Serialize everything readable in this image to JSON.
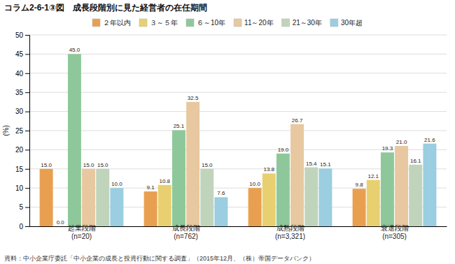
{
  "chart_data": {
    "type": "bar",
    "title": "コラム2-6-1③図　成長段階別に見た経営者の在任期間",
    "ylabel": "(%)",
    "categories": [
      "起業段階\n(n=20)",
      "成長段階\n(n=762)",
      "成熟段階\n(n=3,321)",
      "衰退段階\n(n=305)"
    ],
    "series": [
      {
        "name": "２年以内",
        "color": "#E8A050",
        "values": [
          15.0,
          9.1,
          10.0,
          9.8
        ],
        "value_labels": [
          "15.0",
          "9.1",
          "10.0",
          "9.8"
        ]
      },
      {
        "name": "３～５年",
        "color": "#E8D070",
        "values": [
          0.0,
          10.8,
          13.8,
          12.1
        ],
        "value_labels": [
          "0.0",
          "10.8",
          "13.8",
          "12.1"
        ]
      },
      {
        "name": "６～10年",
        "color": "#8EC89A",
        "values": [
          45.0,
          25.1,
          19.0,
          19.3
        ],
        "value_labels": [
          "45.0",
          "25.1",
          "19.0",
          "19.3"
        ]
      },
      {
        "name": "11～20年",
        "color": "#E8C8A0",
        "values": [
          15.0,
          32.5,
          26.7,
          21.0
        ],
        "value_labels": [
          "15.0",
          "32.5",
          "26.7",
          "21.0"
        ]
      },
      {
        "name": "21～30年",
        "color": "#C0D4BC",
        "values": [
          15.0,
          15.0,
          15.4,
          16.1
        ],
        "value_labels": [
          "15.0",
          "15.0",
          "15.4",
          "16.1"
        ]
      },
      {
        "name": "30年超",
        "color": "#9ACEE0",
        "values": [
          10.0,
          7.6,
          15.1,
          21.6
        ],
        "value_labels": [
          "10.0",
          "7.6",
          "15.1",
          "21.6"
        ]
      }
    ],
    "ylim": [
      0,
      50
    ],
    "yticks": [
      0,
      5,
      10,
      15,
      20,
      25,
      30,
      35,
      40,
      45,
      50
    ],
    "grid": true,
    "legend": "top",
    "data_labels": true,
    "annotations": [
      "資料：中小企業庁委託「中小企業の成長と投資行動に関する調査」（2015年12月、（株）帝国データバンク）"
    ]
  }
}
